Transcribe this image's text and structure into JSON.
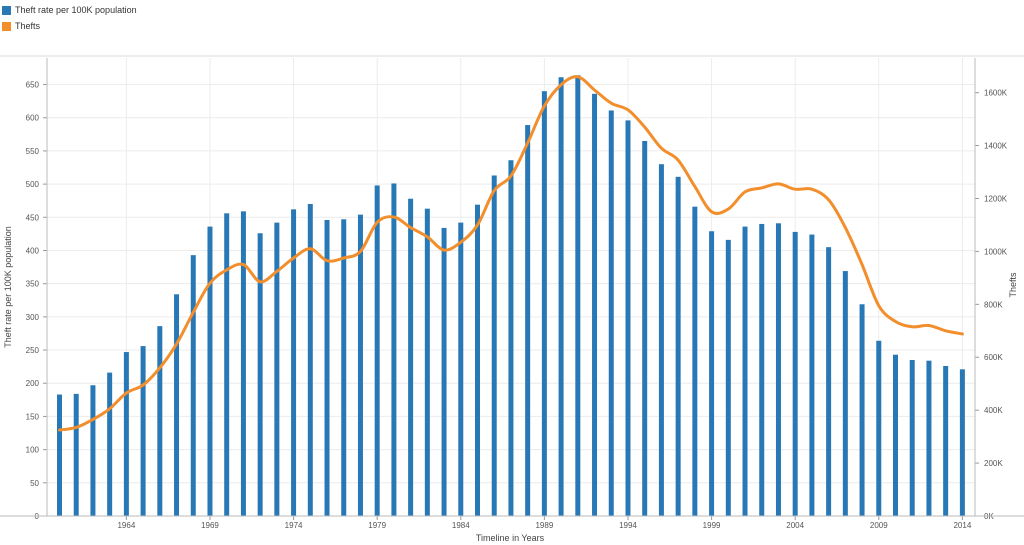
{
  "legend": {
    "items": [
      {
        "label": "Theft rate per 100K population",
        "color": "#2878b5"
      },
      {
        "label": "Thefts",
        "color": "#f28e2b"
      }
    ]
  },
  "chart_data": {
    "type": "bar",
    "title": "",
    "xlabel": "Timeline in Years",
    "ylabel": "Theft rate per 100K population",
    "y2label": "Thefts",
    "ylim": [
      0,
      690
    ],
    "y2lim": [
      0,
      1731000
    ],
    "yticks": [
      0,
      50,
      100,
      150,
      200,
      250,
      300,
      350,
      400,
      450,
      500,
      550,
      600,
      650
    ],
    "y2ticks": [
      0,
      200000,
      400000,
      600000,
      800000,
      1000000,
      1200000,
      1400000,
      1600000
    ],
    "y2ticklabels": [
      "0K",
      "200K",
      "400K",
      "600K",
      "800K",
      "1000K",
      "1200K",
      "1400K",
      "1600K"
    ],
    "xticks": [
      1964,
      1969,
      1974,
      1979,
      1984,
      1989,
      1994,
      1999,
      2004,
      2009,
      2014
    ],
    "grid": true,
    "x": [
      1960,
      1961,
      1962,
      1963,
      1964,
      1965,
      1966,
      1967,
      1968,
      1969,
      1970,
      1971,
      1972,
      1973,
      1974,
      1975,
      1976,
      1977,
      1978,
      1979,
      1980,
      1981,
      1982,
      1983,
      1984,
      1985,
      1986,
      1987,
      1988,
      1989,
      1990,
      1991,
      1992,
      1993,
      1994,
      1995,
      1996,
      1997,
      1998,
      1999,
      2000,
      2001,
      2002,
      2003,
      2004,
      2005,
      2006,
      2007,
      2008,
      2009,
      2010,
      2011,
      2012,
      2013,
      2014
    ],
    "series": [
      {
        "name": "Theft rate per 100K population",
        "type": "bar",
        "axis": "left",
        "color": "#2878b5",
        "values": [
          183,
          184,
          197,
          216,
          247,
          256,
          286,
          334,
          393,
          436,
          456,
          459,
          426,
          442,
          462,
          470,
          446,
          447,
          454,
          498,
          501,
          478,
          463,
          434,
          442,
          469,
          513,
          536,
          589,
          640,
          661,
          664,
          636,
          611,
          596,
          565,
          530,
          511,
          466,
          429,
          416,
          436,
          440,
          441,
          428,
          424,
          405,
          369,
          319,
          264,
          243,
          235,
          234,
          226,
          221
        ]
      },
      {
        "name": "Thefts",
        "type": "line",
        "axis": "right",
        "color": "#f28e2b",
        "values": [
          325000,
          335000,
          365000,
          405000,
          465000,
          495000,
          560000,
          650000,
          770000,
          880000,
          930000,
          950000,
          885000,
          925000,
          975000,
          1010000,
          965000,
          975000,
          1000000,
          1110000,
          1130000,
          1090000,
          1055000,
          1005000,
          1035000,
          1100000,
          1230000,
          1285000,
          1410000,
          1550000,
          1630000,
          1660000,
          1610000,
          1560000,
          1535000,
          1470000,
          1390000,
          1345000,
          1245000,
          1150000,
          1160000,
          1225000,
          1240000,
          1255000,
          1235000,
          1235000,
          1195000,
          1090000,
          950000,
          795000,
          735000,
          715000,
          720000,
          700000,
          688000
        ]
      }
    ]
  }
}
